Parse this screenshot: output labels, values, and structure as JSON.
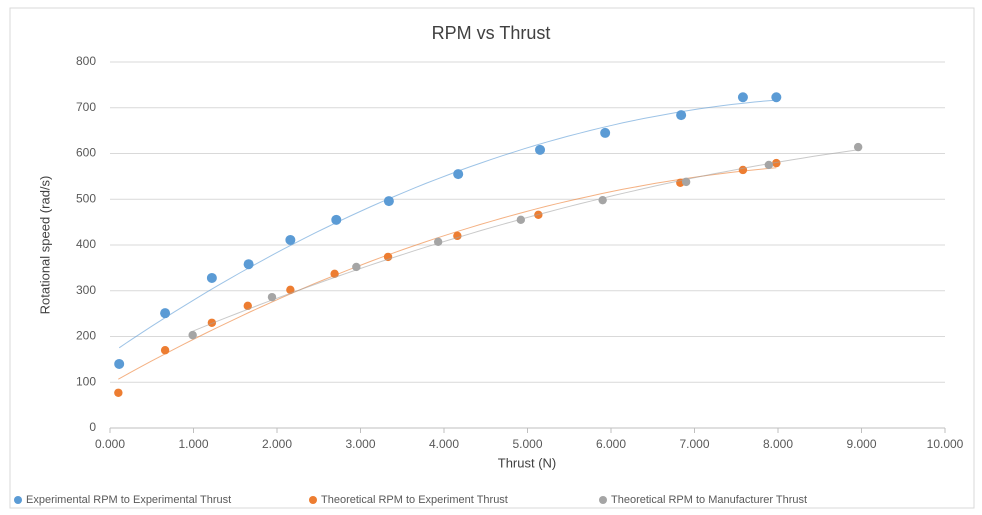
{
  "chart_data": {
    "type": "scatter",
    "title": "RPM vs Thrust",
    "xlabel": "Thrust (N)",
    "ylabel": "Rotational speed (rad/s)",
    "xlim": [
      0,
      10
    ],
    "ylim": [
      0,
      800
    ],
    "xticks": [
      {
        "value": 0,
        "label": "0.000"
      },
      {
        "value": 1,
        "label": "1.000"
      },
      {
        "value": 2,
        "label": "2.000"
      },
      {
        "value": 3,
        "label": "3.000"
      },
      {
        "value": 4,
        "label": "4.000"
      },
      {
        "value": 5,
        "label": "5.000"
      },
      {
        "value": 6,
        "label": "6.000"
      },
      {
        "value": 7,
        "label": "7.000"
      },
      {
        "value": 8,
        "label": "8.000"
      },
      {
        "value": 9,
        "label": "9.000"
      },
      {
        "value": 10,
        "label": "10.000"
      }
    ],
    "yticks": [
      0,
      100,
      200,
      300,
      400,
      500,
      600,
      700,
      800
    ],
    "grid": true,
    "legend": "bottom",
    "trendline": "polynomial",
    "series": [
      {
        "name": "Experimental RPM to Experimental Thrust",
        "color": "#5b9bd5",
        "x": [
          0.11,
          0.66,
          1.22,
          1.66,
          2.16,
          2.71,
          3.34,
          4.17,
          5.15,
          5.93,
          6.84,
          7.58,
          7.98
        ],
        "values": [
          140,
          251,
          328,
          358,
          411,
          455,
          496,
          555,
          608,
          645,
          684,
          723,
          723
        ]
      },
      {
        "name": "Theoretical RPM to Experiment Thrust",
        "color": "#ed7d31",
        "x": [
          0.1,
          0.66,
          1.22,
          1.65,
          2.16,
          2.69,
          3.33,
          4.16,
          5.13,
          6.83,
          7.58,
          7.98
        ],
        "values": [
          77,
          170,
          230,
          267,
          302,
          337,
          374,
          420,
          466,
          536,
          564,
          579
        ]
      },
      {
        "name": "Theoretical RPM to Manufacturer Thrust",
        "color": "#a5a5a5",
        "x": [
          0.99,
          1.94,
          2.95,
          3.93,
          4.92,
          5.9,
          6.9,
          7.89,
          8.96
        ],
        "values": [
          203,
          286,
          352,
          407,
          455,
          498,
          538,
          575,
          614
        ]
      }
    ]
  }
}
